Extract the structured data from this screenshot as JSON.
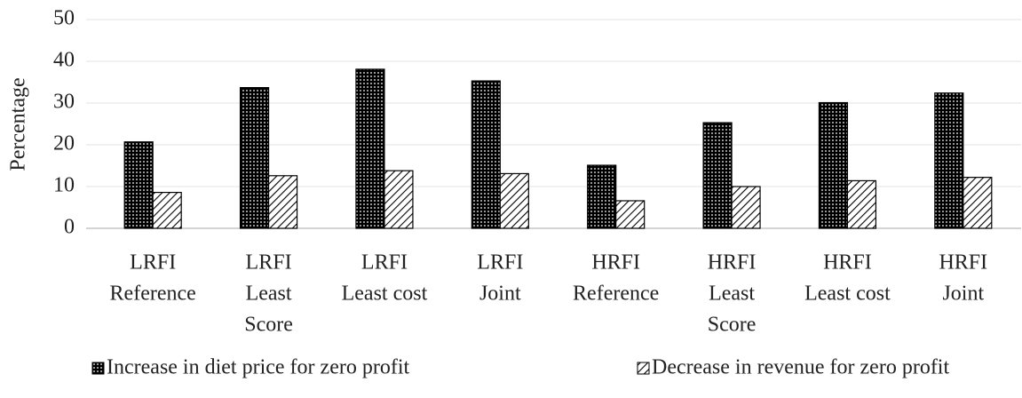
{
  "chart_data": {
    "type": "bar",
    "categories": [
      [
        "LRFI",
        "Reference"
      ],
      [
        "LRFI",
        "Least",
        "Score"
      ],
      [
        "LRFI",
        "Least cost"
      ],
      [
        "LRFI",
        "Joint"
      ],
      [
        "HRFI",
        "Reference"
      ],
      [
        "HRFI",
        "Least",
        "Score"
      ],
      [
        "HRFI",
        "Least cost"
      ],
      [
        "HRFI",
        "Joint"
      ]
    ],
    "y_label": "Percentage",
    "series": [
      {
        "name": "Increase in diet price for zero profit",
        "color": "#000000",
        "pattern": "dots",
        "values": [
          20.7,
          33.7,
          38.1,
          35.3,
          15.1,
          25.3,
          30.1,
          32.4
        ]
      },
      {
        "name": "Decrease in revenue for zero profit",
        "color": "#000000",
        "pattern": "hatch",
        "values": [
          8.6,
          12.6,
          13.8,
          13.1,
          6.6,
          10.0,
          11.4,
          12.2
        ]
      }
    ],
    "ylim": [
      0,
      50
    ],
    "yticks": [
      0,
      10,
      20,
      30,
      40,
      50
    ],
    "grid": true,
    "legend": "bottom"
  }
}
